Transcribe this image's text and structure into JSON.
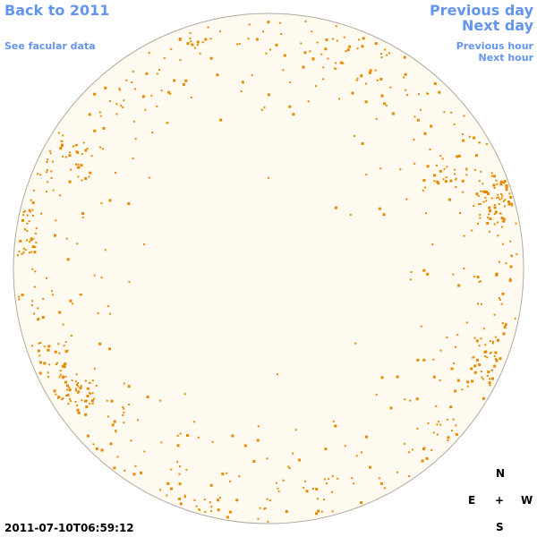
{
  "header": {
    "back_link": "Back to 2011",
    "facular_link": "See facular data",
    "previous_day": "Previous day",
    "next_day": "Next day",
    "previous_hour": "Previous hour",
    "next_hour": "Next hour"
  },
  "footer": {
    "timestamp": "2011-07-10T06:59:12"
  },
  "compass": {
    "north": "N",
    "east": "E",
    "center": "+",
    "west": "W",
    "south": "S"
  }
}
